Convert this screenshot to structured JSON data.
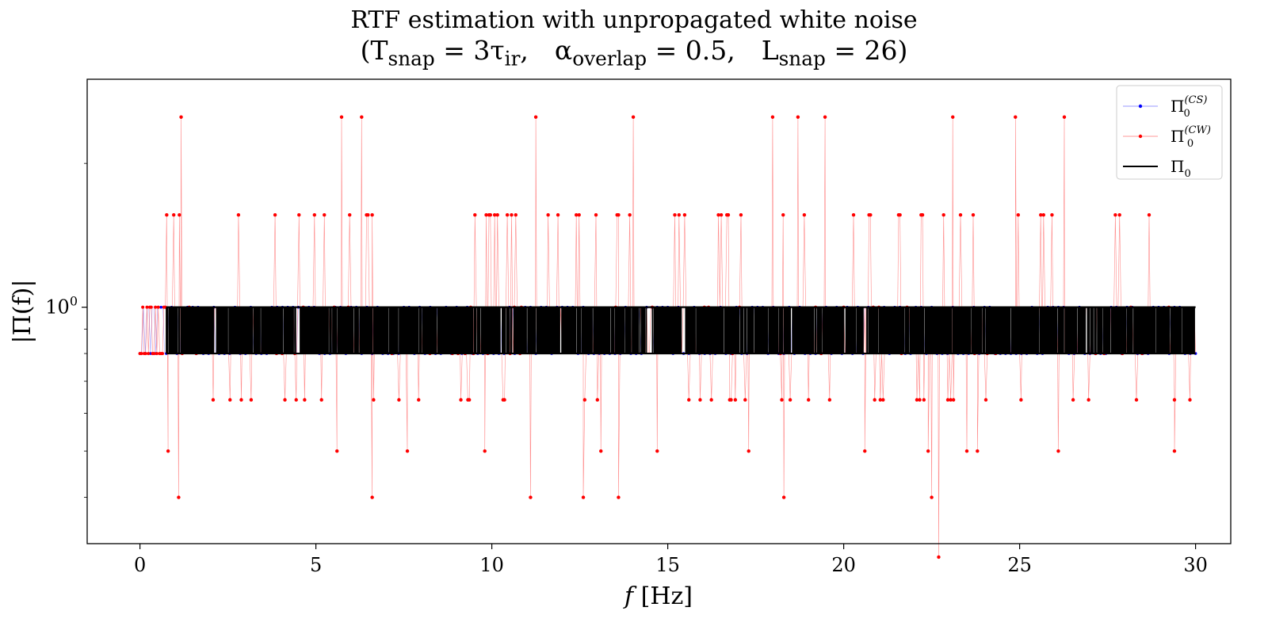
{
  "chart_data": {
    "type": "line",
    "title": "RTF estimation with unpropagated white noise",
    "subtitle": "(T_snap = 3τ_ir,   α_overlap = 0.5,   L_snap = 26)",
    "xlabel": "f [Hz]",
    "ylabel": "|Π(f)|",
    "xlim": [
      -1.5,
      31
    ],
    "x_ticks": [
      0,
      5,
      10,
      15,
      20,
      25,
      30
    ],
    "x_tick_labels": [
      "0",
      "5",
      "10",
      "15",
      "20",
      "25",
      "30"
    ],
    "y_scale": "log",
    "y_ticks": [
      1
    ],
    "y_tick_labels": [
      "10^0"
    ],
    "ylim": [
      0.32,
      3.0
    ],
    "grid": false,
    "legend_position": "top-right",
    "series": [
      {
        "name": "Π0^(CS)",
        "legend": {
          "base": "Π",
          "sub": "0",
          "sup": "(CS)"
        },
        "color": "#0000ff",
        "style": "line+markers",
        "x_range": [
          0,
          30
        ],
        "levels": [
          0.8,
          1.0
        ],
        "description_values": "alternates between 0.8 and 1.0"
      },
      {
        "name": "Π0^(CW)",
        "legend": {
          "base": "Π",
          "sub": "0",
          "sup": "(CW)"
        },
        "color": "#ff0000",
        "style": "line+markers",
        "x_range": [
          0,
          30
        ],
        "levels": [
          0.3,
          0.4,
          0.5,
          0.64,
          0.8,
          1.0,
          1.56,
          2.5
        ],
        "upper_spikes_x": [
          1.17,
          5.73,
          6.3,
          11.25,
          14.02,
          17.98,
          18.7,
          19.47,
          23.1,
          24.88,
          26.27
        ],
        "lower_spikes": [
          {
            "x": 1.1,
            "y": 0.4
          },
          {
            "x": 6.6,
            "y": 0.4
          },
          {
            "x": 11.1,
            "y": 0.4
          },
          {
            "x": 12.6,
            "y": 0.4
          },
          {
            "x": 13.6,
            "y": 0.4
          },
          {
            "x": 18.3,
            "y": 0.4
          },
          {
            "x": 22.5,
            "y": 0.4
          },
          {
            "x": 22.7,
            "y": 0.3
          },
          {
            "x": 0.8,
            "y": 0.5
          },
          {
            "x": 5.6,
            "y": 0.5
          },
          {
            "x": 7.6,
            "y": 0.5
          },
          {
            "x": 9.8,
            "y": 0.5
          },
          {
            "x": 13.1,
            "y": 0.5
          },
          {
            "x": 14.7,
            "y": 0.5
          },
          {
            "x": 17.3,
            "y": 0.5
          },
          {
            "x": 20.6,
            "y": 0.5
          },
          {
            "x": 22.4,
            "y": 0.5
          },
          {
            "x": 23.5,
            "y": 0.5
          },
          {
            "x": 23.8,
            "y": 0.5
          },
          {
            "x": 26.1,
            "y": 0.5
          },
          {
            "x": 29.4,
            "y": 0.5
          }
        ]
      },
      {
        "name": "Π0",
        "legend": {
          "base": "Π",
          "sub": "0",
          "sup": ""
        },
        "color": "#000000",
        "style": "line",
        "x_range": [
          0.75,
          30
        ],
        "levels": [
          0.8,
          1.0
        ],
        "description_values": "dense alternation between 0.8 and 1.0",
        "gaps": [
          [
            4.43,
            4.55
          ],
          [
            14.4,
            14.55
          ],
          [
            15.4,
            15.5
          ],
          [
            20.55,
            20.65
          ]
        ]
      }
    ]
  }
}
